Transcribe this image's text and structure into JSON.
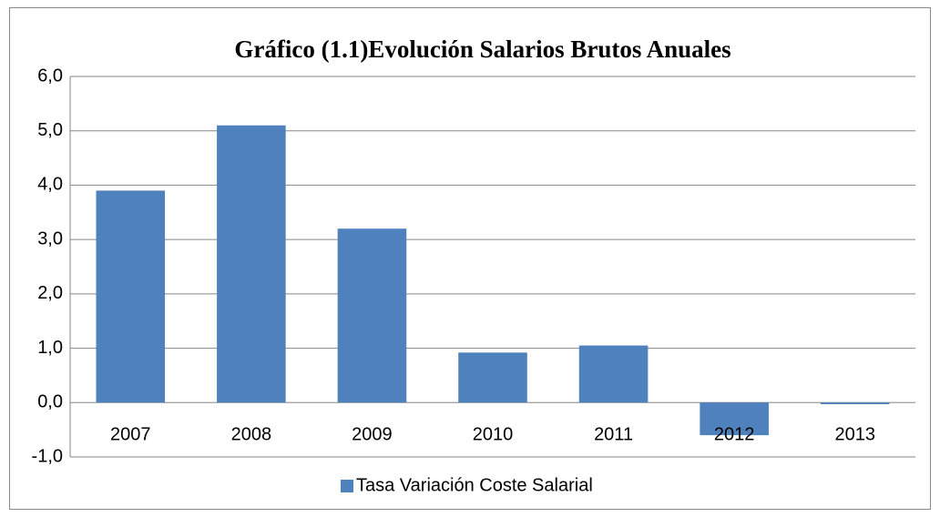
{
  "chart_data": {
    "type": "bar",
    "title": "Gráfico (1.1)Evolución Salarios Brutos Anuales",
    "categories": [
      "2007",
      "2008",
      "2009",
      "2010",
      "2011",
      "2012",
      "2013"
    ],
    "series": [
      {
        "name": "Tasa Variación Coste Salarial",
        "color": "#4f81bd",
        "values": [
          3.9,
          5.1,
          3.2,
          0.92,
          1.05,
          -0.6,
          -0.03
        ]
      }
    ],
    "ylim": [
      -1,
      6
    ],
    "yticks": [
      {
        "value": -1,
        "label": "-1,0"
      },
      {
        "value": 0,
        "label": "0,0"
      },
      {
        "value": 1,
        "label": "1,0"
      },
      {
        "value": 2,
        "label": "2,0"
      },
      {
        "value": 3,
        "label": "3,0"
      },
      {
        "value": 4,
        "label": "4,0"
      },
      {
        "value": 5,
        "label": "5,0"
      },
      {
        "value": 6,
        "label": "6,0"
      }
    ],
    "grid": true,
    "legend": "bottom"
  }
}
